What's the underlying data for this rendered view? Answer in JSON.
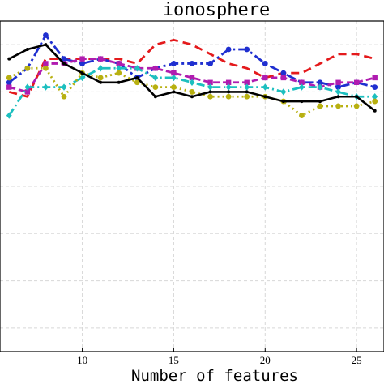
{
  "chart_data": {
    "type": "line",
    "title": "ionosphere",
    "xlabel": "Number of features",
    "ylabel": "",
    "xlim": [
      5.5,
      26.5
    ],
    "ylim": [
      0.3,
      1.0
    ],
    "xticks": [
      10,
      15,
      20,
      25
    ],
    "xtick_labels": [
      "10",
      "15",
      "20",
      "25"
    ],
    "yticks": [
      0.35,
      0.45,
      0.55,
      0.65,
      0.75,
      0.85,
      0.95
    ],
    "grid": true,
    "series": [
      {
        "color": "#e41a1c",
        "dash": "10,6",
        "marker": "none",
        "x": [
          6,
          7,
          8,
          9,
          10,
          11,
          12,
          13,
          14,
          15,
          16,
          17,
          18,
          19,
          20,
          21,
          22,
          23,
          24,
          25,
          26
        ],
        "y": [
          0.85,
          0.84,
          0.92,
          0.92,
          0.92,
          0.92,
          0.92,
          0.91,
          0.95,
          0.96,
          0.95,
          0.93,
          0.91,
          0.9,
          0.88,
          0.89,
          0.89,
          0.91,
          0.93,
          0.93,
          0.92
        ]
      },
      {
        "color": "#1f2fd0",
        "dash": "12,4,3,4",
        "marker": "circle",
        "x": [
          6,
          7,
          8,
          9,
          10,
          11,
          12,
          13,
          14,
          15,
          16,
          17,
          18,
          19,
          20,
          21,
          22,
          23,
          24,
          25,
          26
        ],
        "y": [
          0.87,
          0.9,
          0.97,
          0.92,
          0.91,
          0.92,
          0.91,
          0.88,
          0.9,
          0.91,
          0.91,
          0.91,
          0.94,
          0.94,
          0.91,
          0.89,
          0.87,
          0.87,
          0.86,
          0.87,
          0.86
        ]
      },
      {
        "color": "#b01cb0",
        "dash": "8,4",
        "marker": "square",
        "x": [
          6,
          7,
          8,
          9,
          10,
          11,
          12,
          13,
          14,
          15,
          16,
          17,
          18,
          19,
          20,
          21,
          22,
          23,
          24,
          25,
          26
        ],
        "y": [
          0.86,
          0.85,
          0.91,
          0.91,
          0.92,
          0.92,
          0.91,
          0.9,
          0.9,
          0.89,
          0.88,
          0.87,
          0.87,
          0.87,
          0.88,
          0.88,
          0.87,
          0.86,
          0.87,
          0.87,
          0.88
        ]
      },
      {
        "color": "#1cbfbf",
        "dash": "10,4,2,4",
        "marker": "diamond",
        "x": [
          6,
          7,
          8,
          9,
          10,
          11,
          12,
          13,
          14,
          15,
          16,
          17,
          18,
          19,
          20,
          21,
          22,
          23,
          24,
          25,
          26
        ],
        "y": [
          0.8,
          0.86,
          0.86,
          0.86,
          0.88,
          0.9,
          0.9,
          0.9,
          0.88,
          0.88,
          0.87,
          0.86,
          0.86,
          0.86,
          0.86,
          0.85,
          0.86,
          0.86,
          0.85,
          0.84,
          0.84
        ]
      },
      {
        "color": "#b8b010",
        "dash": "2,4",
        "marker": "circle",
        "x": [
          6,
          7,
          8,
          9,
          10,
          11,
          12,
          13,
          14,
          15,
          16,
          17,
          18,
          19,
          20,
          21,
          22,
          23,
          24,
          25,
          26
        ],
        "y": [
          0.88,
          0.9,
          0.9,
          0.84,
          0.89,
          0.88,
          0.89,
          0.87,
          0.86,
          0.86,
          0.85,
          0.84,
          0.84,
          0.84,
          0.84,
          0.83,
          0.8,
          0.82,
          0.82,
          0.82,
          0.83
        ]
      },
      {
        "color": "#000000",
        "dash": "",
        "marker": "dot",
        "x": [
          6,
          7,
          8,
          9,
          10,
          11,
          12,
          13,
          14,
          15,
          16,
          17,
          18,
          19,
          20,
          21,
          22,
          23,
          24,
          25,
          26
        ],
        "y": [
          0.92,
          0.94,
          0.95,
          0.91,
          0.89,
          0.87,
          0.87,
          0.88,
          0.84,
          0.85,
          0.84,
          0.85,
          0.85,
          0.85,
          0.84,
          0.83,
          0.83,
          0.83,
          0.84,
          0.84,
          0.81
        ]
      }
    ]
  }
}
